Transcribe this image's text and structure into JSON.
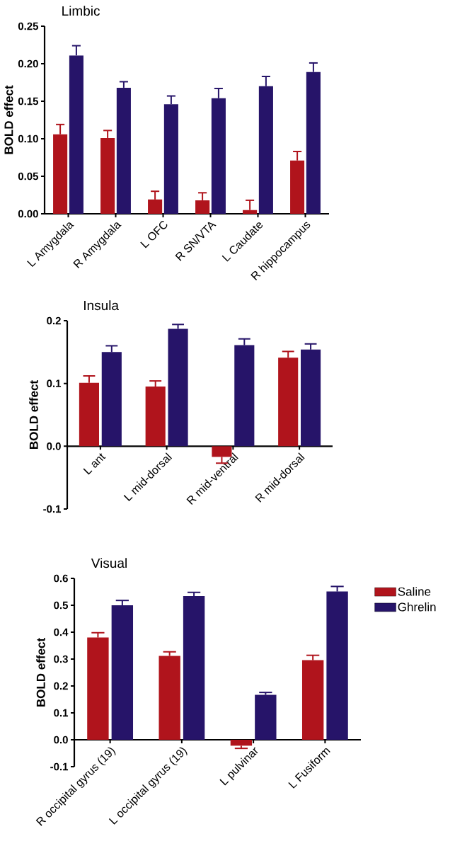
{
  "chart_data": [
    {
      "type": "bar",
      "title": "Limbic",
      "ylabel": "BOLD effect",
      "categories": [
        "L Amygdala",
        "R Amygdala",
        "L OFC",
        "R SN/VTA",
        "L Caudate",
        "R hippocampus"
      ],
      "ylim": [
        0,
        0.25
      ],
      "yticks": [
        {
          "value": 0,
          "label": "0.00"
        },
        {
          "value": 0.05,
          "label": "0.05"
        },
        {
          "value": 0.1,
          "label": "0.10"
        },
        {
          "value": 0.15,
          "label": "0.15"
        },
        {
          "value": 0.2,
          "label": "0.20"
        },
        {
          "value": 0.25,
          "label": "0.25"
        }
      ],
      "series": [
        {
          "color": "#b0141c",
          "values": [
            0.106,
            0.101,
            0.019,
            0.018,
            0.005,
            0.071
          ],
          "errors": [
            [
              0.106,
              0.119
            ],
            [
              0.101,
              0.111
            ],
            [
              0.019,
              0.03
            ],
            [
              0.018,
              0.028
            ],
            [
              0.005,
              0.018
            ],
            [
              0.071,
              0.083
            ]
          ]
        },
        {
          "color": "#261469",
          "values": [
            0.211,
            0.168,
            0.146,
            0.154,
            0.17,
            0.189
          ],
          "errors": [
            [
              0.211,
              0.224
            ],
            [
              0.168,
              0.176
            ],
            [
              0.146,
              0.157
            ],
            [
              0.154,
              0.167
            ],
            [
              0.17,
              0.183
            ],
            [
              0.189,
              0.201
            ]
          ]
        }
      ]
    },
    {
      "type": "bar",
      "title": "Insula",
      "ylabel": "BOLD effect",
      "categories": [
        "L ant",
        "L mid-dorsal",
        "R mid-ventral",
        "R mid-dorsal"
      ],
      "ylim": [
        -0.1,
        0.2
      ],
      "yticks": [
        {
          "value": -0.1,
          "label": "-0.1"
        },
        {
          "value": 0,
          "label": "0.0"
        },
        {
          "value": 0.1,
          "label": "0.1"
        },
        {
          "value": 0.2,
          "label": "0.2"
        }
      ],
      "series": [
        {
          "color": "#b0141c",
          "values": [
            0.101,
            0.095,
            -0.017,
            0.141
          ],
          "errors": [
            [
              0.101,
              0.112
            ],
            [
              0.095,
              0.104
            ],
            [
              -0.027,
              -0.017
            ],
            [
              0.141,
              0.151
            ]
          ]
        },
        {
          "color": "#261469",
          "values": [
            0.15,
            0.187,
            0.161,
            0.154
          ],
          "errors": [
            [
              0.15,
              0.16
            ],
            [
              0.187,
              0.194
            ],
            [
              0.161,
              0.171
            ],
            [
              0.154,
              0.163
            ]
          ]
        }
      ]
    },
    {
      "type": "bar",
      "title": "Visual",
      "ylabel": "BOLD effect",
      "categories": [
        "R occipital gyrus (19)",
        "L occipital gyrus (19)",
        "L pulvinar",
        "L Fusiform"
      ],
      "ylim": [
        -0.1,
        0.6
      ],
      "yticks": [
        {
          "value": -0.1,
          "label": "-0.1"
        },
        {
          "value": 0,
          "label": "0.0"
        },
        {
          "value": 0.1,
          "label": "0.1"
        },
        {
          "value": 0.2,
          "label": "0.2"
        },
        {
          "value": 0.3,
          "label": "0.3"
        },
        {
          "value": 0.4,
          "label": "0.4"
        },
        {
          "value": 0.5,
          "label": "0.5"
        },
        {
          "value": 0.6,
          "label": "0.6"
        }
      ],
      "legend": "top right",
      "series": [
        {
          "name": "Saline",
          "color": "#b0141c",
          "values": [
            0.38,
            0.312,
            -0.022,
            0.296
          ],
          "errors": [
            [
              0.38,
              0.398
            ],
            [
              0.312,
              0.327
            ],
            [
              -0.032,
              -0.022
            ],
            [
              0.296,
              0.314
            ]
          ]
        },
        {
          "name": "Ghrelin",
          "color": "#261469",
          "values": [
            0.5,
            0.534,
            0.167,
            0.551
          ],
          "errors": [
            [
              0.5,
              0.518
            ],
            [
              0.534,
              0.548
            ],
            [
              0.167,
              0.176
            ],
            [
              0.551,
              0.57
            ]
          ]
        }
      ]
    }
  ]
}
